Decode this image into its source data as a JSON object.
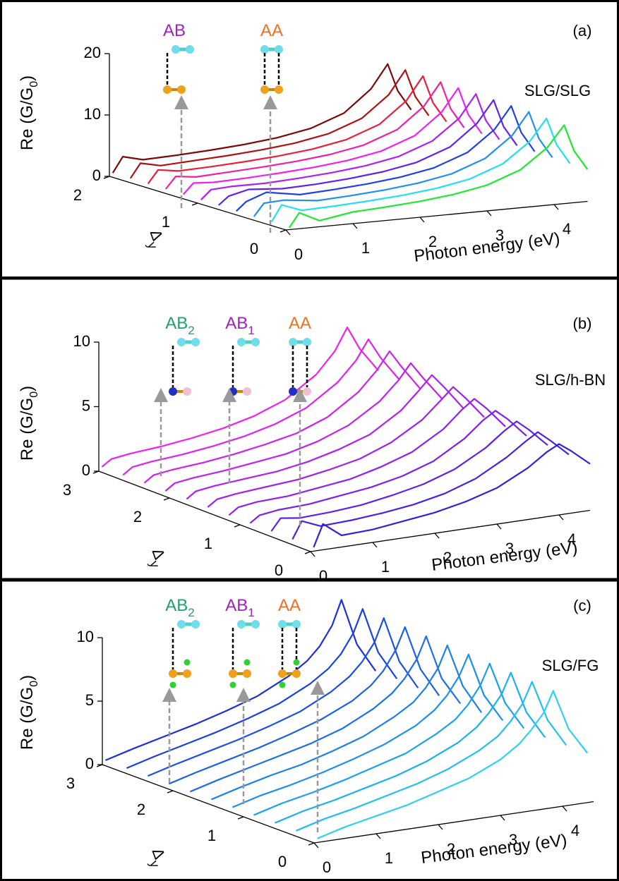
{
  "chart_data": [
    {
      "type": "waterfall3d",
      "panel_label": "(a)",
      "label": "SLG/SLG",
      "xlabel": "Photon energy (eV)",
      "zlabel": [
        "Re (G/G",
        "0",
        ")"
      ],
      "depth_label": [
        "Δ",
        "y"
      ],
      "insets": [
        {
          "label": "AB",
          "color": "#a020c8"
        },
        {
          "label": "AA",
          "color": "#f07020"
        }
      ],
      "xlim": [
        0,
        4.5
      ],
      "xticks": [
        0,
        1,
        2,
        3,
        4
      ],
      "depth_lim": [
        0,
        2
      ],
      "depth_ticks": [
        0,
        1,
        2
      ],
      "zlim": [
        0,
        20
      ],
      "zticks": [
        0,
        10,
        20
      ],
      "x": [
        0.05,
        0.2,
        0.5,
        1,
        1.5,
        2,
        2.5,
        3,
        3.5,
        3.9,
        4.15,
        4.3,
        4.5
      ],
      "series": [
        {
          "depth": 2.0,
          "color": "#7a0a0a",
          "values": [
            0.5,
            3,
            2.2,
            2.4,
            2.7,
            3.1,
            3.7,
            4.7,
            6.7,
            10.2,
            14.0,
            9.5,
            6.2
          ]
        },
        {
          "depth": 1.8,
          "color": "#b01010",
          "values": [
            0.5,
            2.8,
            2.1,
            2.4,
            2.7,
            3.1,
            3.7,
            4.7,
            6.7,
            10.1,
            13.9,
            9.4,
            6.1
          ]
        },
        {
          "depth": 1.6,
          "color": "#e8203c",
          "values": [
            0.5,
            2.6,
            2.1,
            2.3,
            2.6,
            3.0,
            3.6,
            4.6,
            6.6,
            10.0,
            13.8,
            9.3,
            6.0
          ]
        },
        {
          "depth": 1.4,
          "color": "#f020a0",
          "values": [
            0.5,
            2.4,
            2.0,
            2.3,
            2.6,
            3.0,
            3.6,
            4.6,
            6.6,
            10.0,
            13.7,
            9.2,
            5.9
          ]
        },
        {
          "depth": 1.2,
          "color": "#f020f0",
          "values": [
            0.5,
            2.2,
            2.0,
            2.2,
            2.5,
            2.9,
            3.5,
            4.5,
            6.5,
            9.9,
            13.6,
            9.1,
            5.8
          ]
        },
        {
          "depth": 1.0,
          "color": "#b020f0",
          "values": [
            0.5,
            2.0,
            2.2,
            2.2,
            2.5,
            2.9,
            3.5,
            4.5,
            6.5,
            9.8,
            13.5,
            9.0,
            5.7
          ]
        },
        {
          "depth": 0.8,
          "color": "#6020f0",
          "values": [
            0.5,
            1.8,
            2.6,
            2.2,
            2.4,
            2.8,
            3.4,
            4.4,
            6.4,
            9.8,
            13.4,
            8.9,
            5.6
          ]
        },
        {
          "depth": 0.6,
          "color": "#2040e8",
          "values": [
            0.4,
            1.8,
            3.0,
            2.1,
            2.4,
            2.8,
            3.4,
            4.4,
            6.4,
            9.7,
            13.3,
            8.8,
            5.5
          ]
        },
        {
          "depth": 0.4,
          "color": "#2090f0",
          "values": [
            0.4,
            2.4,
            2.6,
            2.0,
            2.3,
            2.7,
            3.3,
            4.3,
            6.3,
            9.6,
            13.2,
            8.7,
            5.4
          ]
        },
        {
          "depth": 0.2,
          "color": "#20e0f0",
          "values": [
            0.4,
            3.0,
            1.8,
            2.0,
            2.3,
            2.7,
            3.3,
            4.3,
            6.3,
            9.5,
            13.0,
            8.6,
            5.3
          ]
        },
        {
          "depth": 0.0,
          "color": "#20e830",
          "values": [
            0.3,
            2.6,
            1.0,
            1.9,
            2.2,
            2.6,
            3.2,
            4.2,
            6.2,
            9.4,
            12.8,
            8.4,
            5.2
          ]
        }
      ]
    },
    {
      "type": "waterfall3d",
      "panel_label": "(b)",
      "label": "SLG/h-BN",
      "xlabel": "Photon energy (eV)",
      "zlabel": [
        "Re (G/G",
        "0",
        ")"
      ],
      "depth_label": [
        "Δ",
        "y"
      ],
      "insets": [
        {
          "label": "AB",
          "sub": "2",
          "color": "#20a070"
        },
        {
          "label": "AB",
          "sub": "1",
          "color": "#a020c8"
        },
        {
          "label": "AA",
          "color": "#f07020"
        }
      ],
      "xlim": [
        0,
        4.5
      ],
      "xticks": [
        0,
        1,
        2,
        3,
        4
      ],
      "depth_lim": [
        0,
        3
      ],
      "depth_ticks": [
        0,
        1,
        2,
        3
      ],
      "zlim": [
        0,
        10
      ],
      "zticks": [
        0,
        5,
        10
      ],
      "x": [
        0.05,
        0.2,
        0.5,
        1,
        1.5,
        2,
        2.5,
        3,
        3.5,
        3.8,
        4.0,
        4.2,
        4.5
      ],
      "series": [
        {
          "depth": 3.0,
          "color": "#f020f0",
          "values": [
            0.3,
            0.8,
            1.0,
            1.2,
            1.5,
            1.9,
            2.5,
            3.4,
            5.0,
            6.6,
            8.3,
            6.5,
            4.6
          ]
        },
        {
          "depth": 2.7,
          "color": "#e020f0",
          "values": [
            0.3,
            0.8,
            1.0,
            1.2,
            1.5,
            1.9,
            2.5,
            3.4,
            5.0,
            6.5,
            8.0,
            6.4,
            4.5
          ]
        },
        {
          "depth": 2.4,
          "color": "#d020f0",
          "values": [
            0.3,
            0.8,
            1.0,
            1.2,
            1.5,
            1.9,
            2.4,
            3.3,
            4.9,
            6.4,
            7.7,
            6.3,
            4.4
          ]
        },
        {
          "depth": 2.1,
          "color": "#c020f0",
          "values": [
            0.3,
            0.8,
            1.0,
            1.2,
            1.5,
            1.8,
            2.4,
            3.3,
            4.8,
            6.2,
            7.4,
            6.1,
            4.3
          ]
        },
        {
          "depth": 1.8,
          "color": "#b020f0",
          "values": [
            0.3,
            0.8,
            1.0,
            1.2,
            1.4,
            1.8,
            2.4,
            3.2,
            4.7,
            6.1,
            7.1,
            6.0,
            4.2
          ]
        },
        {
          "depth": 1.5,
          "color": "#a020f0",
          "values": [
            0.3,
            0.8,
            1.0,
            1.2,
            1.4,
            1.8,
            2.3,
            3.2,
            4.6,
            5.9,
            6.8,
            5.8,
            4.1
          ]
        },
        {
          "depth": 1.2,
          "color": "#9020f0",
          "values": [
            0.3,
            0.8,
            1.0,
            1.1,
            1.4,
            1.7,
            2.3,
            3.1,
            4.5,
            5.8,
            6.5,
            5.6,
            4.0
          ]
        },
        {
          "depth": 0.9,
          "color": "#7a20f0",
          "values": [
            0.3,
            0.8,
            1.0,
            1.1,
            1.4,
            1.7,
            2.2,
            3.0,
            4.4,
            5.6,
            6.2,
            5.4,
            3.9
          ]
        },
        {
          "depth": 0.6,
          "color": "#6020ee",
          "values": [
            0.3,
            1.2,
            1.0,
            1.1,
            1.3,
            1.7,
            2.2,
            3.0,
            4.3,
            5.4,
            6.0,
            5.2,
            3.8
          ]
        },
        {
          "depth": 0.3,
          "color": "#4a20e8",
          "values": [
            0.3,
            1.6,
            1.0,
            1.1,
            1.3,
            1.6,
            2.1,
            2.9,
            4.2,
            5.2,
            5.8,
            5.0,
            3.7
          ]
        },
        {
          "depth": 0.0,
          "color": "#3020e0",
          "values": [
            0.3,
            2.0,
            0.9,
            1.0,
            1.3,
            1.6,
            2.1,
            2.8,
            4.0,
            5.0,
            5.5,
            4.8,
            3.6
          ]
        }
      ]
    },
    {
      "type": "waterfall3d",
      "panel_label": "(c)",
      "label": "SLG/FG",
      "xlabel": "Photon energy (eV)",
      "zlabel": [
        "Re (G/G",
        "0",
        ")"
      ],
      "depth_label": [
        "Δ",
        "y"
      ],
      "insets": [
        {
          "label": "AB",
          "sub": "2",
          "color": "#20a070"
        },
        {
          "label": "AB",
          "sub": "1",
          "color": "#a020c8"
        },
        {
          "label": "AA",
          "color": "#f07020"
        }
      ],
      "xlim": [
        0,
        4.5
      ],
      "xticks": [
        0,
        1,
        2,
        3,
        4
      ],
      "depth_lim": [
        0,
        3
      ],
      "depth_ticks": [
        0,
        1,
        2,
        3
      ],
      "zlim": [
        0,
        10
      ],
      "zticks": [
        0,
        5,
        10
      ],
      "x": [
        0.05,
        0.5,
        1,
        1.5,
        2,
        2.5,
        3,
        3.3,
        3.5,
        3.7,
        3.85,
        4.1,
        4.4
      ],
      "series": [
        {
          "depth": 3.0,
          "color": "#1a30e0",
          "values": [
            0.3,
            0.9,
            1.5,
            2.1,
            2.8,
            3.6,
            4.8,
            5.8,
            6.8,
            8.3,
            10.2,
            6.5,
            4.2
          ]
        },
        {
          "depth": 2.7,
          "color": "#1a40e4",
          "values": [
            0.3,
            0.9,
            1.5,
            2.1,
            2.8,
            3.6,
            4.8,
            5.8,
            6.8,
            8.3,
            10.1,
            6.5,
            4.2
          ]
        },
        {
          "depth": 2.4,
          "color": "#1a50e8",
          "values": [
            0.3,
            0.9,
            1.5,
            2.1,
            2.8,
            3.6,
            4.8,
            5.8,
            6.8,
            8.2,
            10.0,
            6.4,
            4.1
          ]
        },
        {
          "depth": 2.1,
          "color": "#1a60ea",
          "values": [
            0.3,
            0.9,
            1.5,
            2.1,
            2.8,
            3.6,
            4.7,
            5.7,
            6.7,
            8.2,
            9.9,
            6.4,
            4.1
          ]
        },
        {
          "depth": 1.8,
          "color": "#1a70ec",
          "values": [
            0.3,
            0.9,
            1.5,
            2.1,
            2.7,
            3.5,
            4.7,
            5.7,
            6.7,
            8.1,
            9.8,
            6.3,
            4.1
          ]
        },
        {
          "depth": 1.5,
          "color": "#1a80ee",
          "values": [
            0.3,
            0.9,
            1.5,
            2.0,
            2.7,
            3.5,
            4.7,
            5.6,
            6.6,
            8.0,
            9.7,
            6.3,
            4.0
          ]
        },
        {
          "depth": 1.2,
          "color": "#1a90ef",
          "values": [
            0.3,
            0.9,
            1.4,
            2.0,
            2.7,
            3.5,
            4.6,
            5.6,
            6.6,
            8.0,
            9.6,
            6.2,
            4.0
          ]
        },
        {
          "depth": 0.9,
          "color": "#1aa0f0",
          "values": [
            0.3,
            0.9,
            1.4,
            2.0,
            2.7,
            3.4,
            4.6,
            5.5,
            6.5,
            7.9,
            9.5,
            6.2,
            4.0
          ]
        },
        {
          "depth": 0.6,
          "color": "#1ab0f0",
          "values": [
            0.3,
            0.9,
            1.4,
            2.0,
            2.6,
            3.4,
            4.5,
            5.5,
            6.5,
            7.8,
            9.4,
            6.1,
            3.9
          ]
        },
        {
          "depth": 0.3,
          "color": "#20c0f0",
          "values": [
            0.3,
            0.9,
            1.4,
            2.0,
            2.6,
            3.4,
            4.5,
            5.4,
            6.4,
            7.7,
            9.3,
            6.1,
            3.9
          ]
        },
        {
          "depth": 0.0,
          "color": "#30d0f0",
          "values": [
            0.3,
            0.9,
            1.4,
            1.9,
            2.6,
            3.3,
            4.4,
            5.4,
            6.4,
            7.6,
            9.2,
            6.0,
            3.9
          ]
        }
      ]
    }
  ]
}
